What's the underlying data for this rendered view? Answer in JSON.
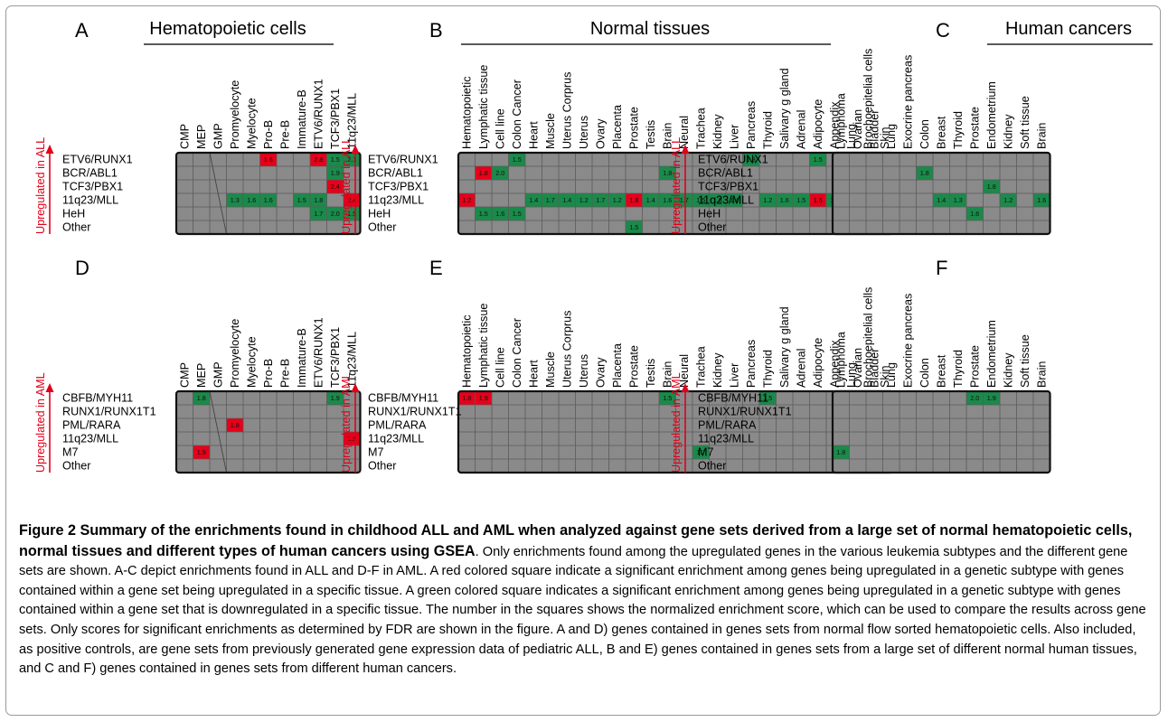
{
  "colors": {
    "cell": "#8a8a8a",
    "red": "#e6001a",
    "green": "#1a8a4a",
    "frame": "#111111",
    "grid": "#5a5a5a",
    "arrow": "#e0001a"
  },
  "rows_all": [
    "ETV6/RUNX1",
    "BCR/ABL1",
    "TCF3/PBX1",
    "11q23/MLL",
    "HeH",
    "Other"
  ],
  "rows_aml": [
    "CBFB/MYH11",
    "RUNX1/RUNX1T1",
    "PML/RARA",
    "11q23/MLL",
    "M7",
    "Other"
  ],
  "arrow_label_all": "Upregulated in ALL",
  "arrow_label_aml": "Upregulated in AML",
  "cols_hema_all": [
    "CMP",
    "MEP",
    "GMP",
    "Promyelocyte",
    "Myelocyte",
    "Pro-B",
    "Pre-B",
    "Immature-B",
    "ETV6/RUNX1",
    "TCF3/PBX1",
    "11q23/MLL"
  ],
  "cols_hema_aml": [
    "CMP",
    "MEP",
    "GMP",
    "Promyelocyte",
    "Myelocyte",
    "Pro-B",
    "Pre-B",
    "Immature-B",
    "ETV6/RUNX1",
    "TCF3/PBX1",
    "11q23/MLL"
  ],
  "cols_tissue": [
    "Hematopoietic",
    "Lymphatic tissue",
    "Cell line",
    "Colon Cancer",
    "Heart",
    "Muscle",
    "Uterus Corprus",
    "Uterus",
    "Ovary",
    "Placenta",
    "Prostate",
    "Testis",
    "Brain",
    "Neural",
    "Trachea",
    "Kidney",
    "Liver",
    "Pancreas",
    "Thyroid",
    "Salivary g gland",
    "Adrenal",
    "Adipocyte",
    "Appendix",
    "Lung",
    "Brochoepitelial cells",
    "Skin"
  ],
  "cols_cancer": [
    "Lymphoma",
    "Ovarian",
    "Bladder",
    "Lung",
    "Exocrine pancreas",
    "Colon",
    "Breast",
    "Thyroid",
    "Prostate",
    "Endometrium",
    "Kidney",
    "Soft tissue",
    "Brain"
  ],
  "chart_data": [
    {
      "type": "heatmap",
      "panel": "A",
      "title": "Hematopoietic cells",
      "rows": "rows_all",
      "columns": "cols_hema_all",
      "cells": [
        {
          "row": 0,
          "col": 5,
          "color": "red",
          "value": "1.6"
        },
        {
          "row": 0,
          "col": 8,
          "color": "red",
          "value": "2.8"
        },
        {
          "row": 0,
          "col": 9,
          "color": "green",
          "value": "1.5"
        },
        {
          "row": 0,
          "col": 10,
          "color": "green",
          "value": "2.1"
        },
        {
          "row": 1,
          "col": 9,
          "color": "green",
          "value": "1.9"
        },
        {
          "row": 2,
          "col": 9,
          "color": "red",
          "value": "2.4"
        },
        {
          "row": 3,
          "col": 3,
          "color": "green",
          "value": "1.3"
        },
        {
          "row": 3,
          "col": 4,
          "color": "green",
          "value": "1.6"
        },
        {
          "row": 3,
          "col": 5,
          "color": "green",
          "value": "1.6"
        },
        {
          "row": 3,
          "col": 7,
          "color": "green",
          "value": "1.5"
        },
        {
          "row": 3,
          "col": 8,
          "color": "green",
          "value": "1.8"
        },
        {
          "row": 3,
          "col": 10,
          "color": "red",
          "value": "2.4"
        },
        {
          "row": 4,
          "col": 8,
          "color": "green",
          "value": "1.7"
        },
        {
          "row": 4,
          "col": 9,
          "color": "green",
          "value": "2.0"
        },
        {
          "row": 4,
          "col": 10,
          "color": "green",
          "value": "1.5"
        }
      ]
    },
    {
      "type": "heatmap",
      "panel": "B",
      "title": "Normal tissues",
      "rows": "rows_all",
      "columns": "cols_tissue",
      "cells": [
        {
          "row": 0,
          "col": 3,
          "color": "green",
          "value": "1.5"
        },
        {
          "row": 0,
          "col": 17,
          "color": "green",
          "value": "1.3"
        },
        {
          "row": 0,
          "col": 21,
          "color": "green",
          "value": "1.5"
        },
        {
          "row": 0,
          "col": 24,
          "color": "green",
          "value": "1.6"
        },
        {
          "row": 1,
          "col": 1,
          "color": "red",
          "value": "1.8"
        },
        {
          "row": 1,
          "col": 2,
          "color": "green",
          "value": "2.0"
        },
        {
          "row": 1,
          "col": 12,
          "color": "green",
          "value": "1.8"
        },
        {
          "row": 3,
          "col": 0,
          "color": "red",
          "value": "1.2"
        },
        {
          "row": 3,
          "col": 4,
          "color": "green",
          "value": "1.4"
        },
        {
          "row": 3,
          "col": 5,
          "color": "green",
          "value": "1.7"
        },
        {
          "row": 3,
          "col": 6,
          "color": "green",
          "value": "1.4"
        },
        {
          "row": 3,
          "col": 7,
          "color": "green",
          "value": "1.2"
        },
        {
          "row": 3,
          "col": 8,
          "color": "green",
          "value": "1.7"
        },
        {
          "row": 3,
          "col": 9,
          "color": "green",
          "value": "1.2"
        },
        {
          "row": 3,
          "col": 10,
          "color": "red",
          "value": "1.8"
        },
        {
          "row": 3,
          "col": 11,
          "color": "green",
          "value": "1.4"
        },
        {
          "row": 3,
          "col": 12,
          "color": "green",
          "value": "1.6"
        },
        {
          "row": 3,
          "col": 13,
          "color": "green",
          "value": "1.7"
        },
        {
          "row": 3,
          "col": 14,
          "color": "green",
          "value": "1.5"
        },
        {
          "row": 3,
          "col": 15,
          "color": "green",
          "value": "1.5"
        },
        {
          "row": 3,
          "col": 16,
          "color": "green",
          "value": "1.4"
        },
        {
          "row": 3,
          "col": 18,
          "color": "green",
          "value": "1.2"
        },
        {
          "row": 3,
          "col": 19,
          "color": "green",
          "value": "1.6"
        },
        {
          "row": 3,
          "col": 20,
          "color": "green",
          "value": "1.5"
        },
        {
          "row": 3,
          "col": 21,
          "color": "red",
          "value": "1.6"
        },
        {
          "row": 3,
          "col": 22,
          "color": "green",
          "value": "1.7"
        },
        {
          "row": 3,
          "col": 23,
          "color": "green",
          "value": "1.8"
        },
        {
          "row": 3,
          "col": 24,
          "color": "red",
          "value": "1.3"
        },
        {
          "row": 3,
          "col": 25,
          "color": "green",
          "value": "1.5"
        },
        {
          "row": 4,
          "col": 1,
          "color": "green",
          "value": "1.5"
        },
        {
          "row": 4,
          "col": 2,
          "color": "green",
          "value": "1.6"
        },
        {
          "row": 4,
          "col": 3,
          "color": "green",
          "value": "1.5"
        },
        {
          "row": 5,
          "col": 10,
          "color": "green",
          "value": "1.5"
        }
      ]
    },
    {
      "type": "heatmap",
      "panel": "C",
      "title": "Human cancers",
      "rows": "rows_all",
      "columns": "cols_cancer",
      "cells": [
        {
          "row": 1,
          "col": 5,
          "color": "green",
          "value": "1.8"
        },
        {
          "row": 2,
          "col": 9,
          "color": "green",
          "value": "1.8"
        },
        {
          "row": 3,
          "col": 6,
          "color": "green",
          "value": "1.4"
        },
        {
          "row": 3,
          "col": 7,
          "color": "green",
          "value": "1.3"
        },
        {
          "row": 3,
          "col": 10,
          "color": "green",
          "value": "1.2"
        },
        {
          "row": 3,
          "col": 12,
          "color": "green",
          "value": "1.6"
        },
        {
          "row": 4,
          "col": 8,
          "color": "green",
          "value": "1.6"
        }
      ]
    },
    {
      "type": "heatmap",
      "panel": "D",
      "title": "",
      "rows": "rows_aml",
      "columns": "cols_hema_aml",
      "cells": [
        {
          "row": 0,
          "col": 1,
          "color": "green",
          "value": "1.8"
        },
        {
          "row": 0,
          "col": 9,
          "color": "green",
          "value": "1.9"
        },
        {
          "row": 2,
          "col": 3,
          "color": "red",
          "value": "1.8"
        },
        {
          "row": 3,
          "col": 10,
          "color": "red",
          "value": "1.9"
        },
        {
          "row": 4,
          "col": 1,
          "color": "red",
          "value": "1.9"
        }
      ]
    },
    {
      "type": "heatmap",
      "panel": "E",
      "title": "",
      "rows": "rows_aml",
      "columns": "cols_tissue",
      "cells": [
        {
          "row": 0,
          "col": 0,
          "color": "red",
          "value": "1.8"
        },
        {
          "row": 0,
          "col": 1,
          "color": "red",
          "value": "1.9"
        },
        {
          "row": 0,
          "col": 12,
          "color": "green",
          "value": "1.5"
        },
        {
          "row": 0,
          "col": 18,
          "color": "green",
          "value": "1.5"
        },
        {
          "row": 4,
          "col": 14,
          "color": "green",
          "value": "1.7"
        },
        {
          "row": 4,
          "col": 25,
          "color": "green",
          "value": "1.6"
        }
      ]
    },
    {
      "type": "heatmap",
      "panel": "F",
      "title": "",
      "rows": "rows_aml",
      "columns": "cols_cancer",
      "cells": [
        {
          "row": 0,
          "col": 8,
          "color": "green",
          "value": "2.0"
        },
        {
          "row": 0,
          "col": 9,
          "color": "green",
          "value": "1.9"
        },
        {
          "row": 4,
          "col": 0,
          "color": "green",
          "value": "1.8"
        }
      ]
    }
  ],
  "caption": {
    "bold": "Figure 2 Summary of the enrichments found in childhood ALL and AML when analyzed against gene sets derived from a large set of normal hematopoietic cells, normal tissues and different types of human cancers using GSEA",
    "text": ". Only enrichments found among the upregulated genes in the various leukemia subtypes and the different gene sets are shown. A-C depict enrichments found in ALL and D-F in AML. A red colored square indicate a significant enrichment among genes being upregulated in a genetic subtype with genes contained within a gene set being upregulated in a specific tissue. A green colored square indicates a significant enrichment among genes being upregulated in a genetic subtype with genes contained within a gene set that is downregulated in a specific tissue. The number in the squares shows the normalized enrichment score, which can be used to compare the results across gene sets. Only scores for significant enrichments as determined by FDR are shown in the figure. A and D) genes contained in genes sets from normal flow sorted hematopoietic cells. Also included, as positive controls, are gene sets from previously generated gene expression data of pediatric ALL, B and E) genes contained in genes sets from a large set of different normal human tissues, and C and F) genes contained in genes sets from different human cancers."
  }
}
